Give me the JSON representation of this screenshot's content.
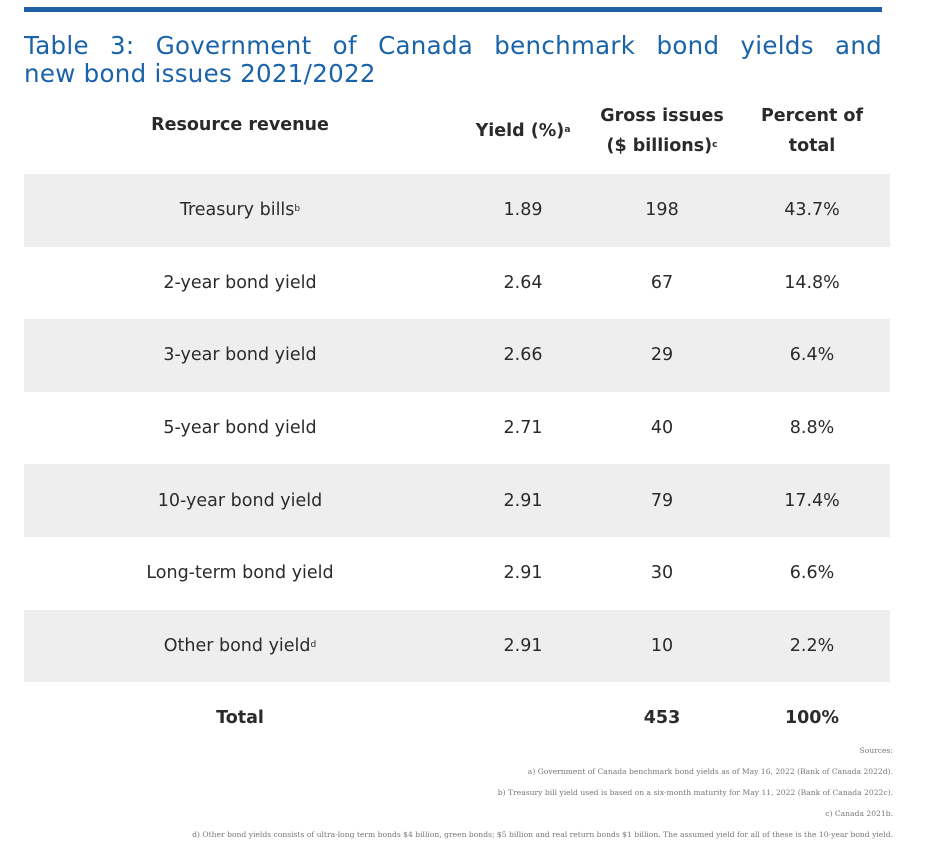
{
  "title": {
    "line1_words": [
      "Table",
      "3:",
      "Government",
      "of",
      "Canada",
      "benchmark",
      "bond",
      "yields",
      "and"
    ],
    "line2": "new bond issues 2021/2022"
  },
  "header": {
    "col1": "Resource revenue",
    "col2": "Yield (%)",
    "col2_sup": "a",
    "col3_line1": "Gross issues",
    "col3_line2": "($ billions)",
    "col3_sup": "c",
    "col4_line1": "Percent of",
    "col4_line2": "total"
  },
  "rows": [
    {
      "label": "Treasury bills",
      "sup": "b",
      "yield": "1.89",
      "gross": "198",
      "percent": "43.7%"
    },
    {
      "label": "2-year bond yield",
      "sup": "",
      "yield": "2.64",
      "gross": "67",
      "percent": "14.8%"
    },
    {
      "label": "3-year bond yield",
      "sup": "",
      "yield": "2.66",
      "gross": "29",
      "percent": "6.4%"
    },
    {
      "label": "5-year bond yield",
      "sup": "",
      "yield": "2.71",
      "gross": "40",
      "percent": "8.8%"
    },
    {
      "label": "10-year bond yield",
      "sup": "",
      "yield": "2.91",
      "gross": "79",
      "percent": "17.4%"
    },
    {
      "label": "Long-term bond yield",
      "sup": "",
      "yield": "2.91",
      "gross": "30",
      "percent": "6.6%"
    },
    {
      "label": "Other bond yield",
      "sup": "d",
      "yield": "2.91",
      "gross": "10",
      "percent": "2.2%"
    }
  ],
  "total": {
    "label": "Total",
    "yield": "",
    "gross": "453",
    "percent": "100%"
  },
  "sources": {
    "heading": "Sources:",
    "a": "a) Government of Canada benchmark bond yields as of May 16, 2022 (Bank of Canada 2022d).",
    "b": "b) Treasury bill yield used is based on a six-month maturity for May 11, 2022 (Bank of Canada 2022c).",
    "c": "c) Canada 2021b.",
    "d": "d) Other bond yields consists of ultra-long term bonds $4 billion, green bonds; $5 billion and real return bonds $1 billion. The assumed yield for all of these is the 10-year bond yield."
  },
  "colors": {
    "accent": "#1f5fa6",
    "title": "#1a63a8",
    "row_shade": "#eeeeee"
  }
}
